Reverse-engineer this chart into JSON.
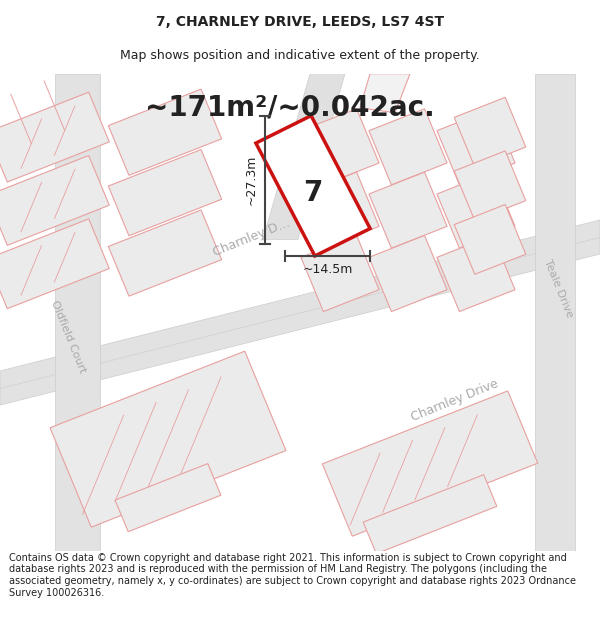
{
  "title_line1": "7, CHARNLEY DRIVE, LEEDS, LS7 4ST",
  "title_line2": "Map shows position and indicative extent of the property.",
  "area_text": "~171m²/~0.042ac.",
  "dim_v": "~27.3m",
  "dim_h": "~14.5m",
  "property_number": "7",
  "street_charnley1": "Charnley D…",
  "street_charnley2": "Charnley Drive",
  "street_teale": "Teale Drive",
  "street_oldfield": "Oldfield Court",
  "footer_text": "Contains OS data © Crown copyright and database right 2021. This information is subject to Crown copyright and database rights 2023 and is reproduced with the permission of HM Land Registry. The polygons (including the associated geometry, namely x, y co-ordinates) are subject to Crown copyright and database rights 2023 Ordnance Survey 100026316.",
  "map_bg": "#f7f7f7",
  "road_fill": "#e2e2e2",
  "road_edge": "#cccccc",
  "building_outline": "#e8a0a0",
  "building_fill_main": "#ebebeb",
  "building_fill_light": "#f0f0f0",
  "property_red": "#cc1111",
  "property_fill": "#ffffff",
  "arrow_color": "#444444",
  "text_dark": "#222222",
  "street_gray": "#aaaaaa",
  "title_fs": 10,
  "subtitle_fs": 9,
  "area_fs": 20,
  "dim_fs": 9,
  "street_fs": 9,
  "footer_fs": 7.0
}
